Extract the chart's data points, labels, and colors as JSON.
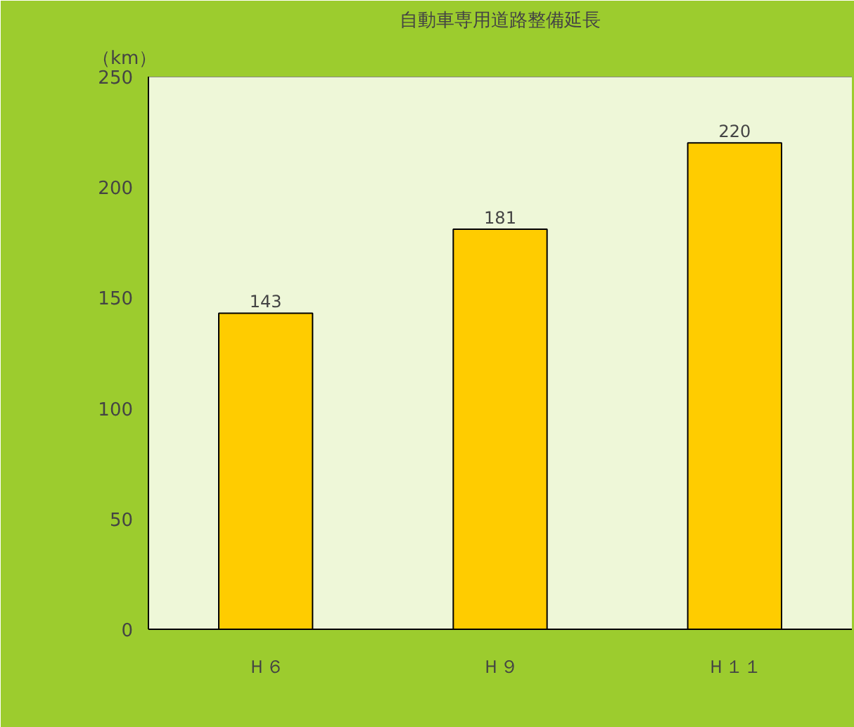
{
  "chart_data": {
    "type": "bar",
    "title": "自動車専用道路整備延長",
    "ylabel": "（km）",
    "categories": [
      "Ｈ６",
      "Ｈ９",
      "Ｈ１１"
    ],
    "values": [
      143,
      181,
      220
    ],
    "color": "#ffcc00",
    "ylim": [
      0,
      250
    ],
    "yticks": [
      0,
      50,
      100,
      150,
      200,
      250
    ],
    "grid": false,
    "data_labels": true
  }
}
